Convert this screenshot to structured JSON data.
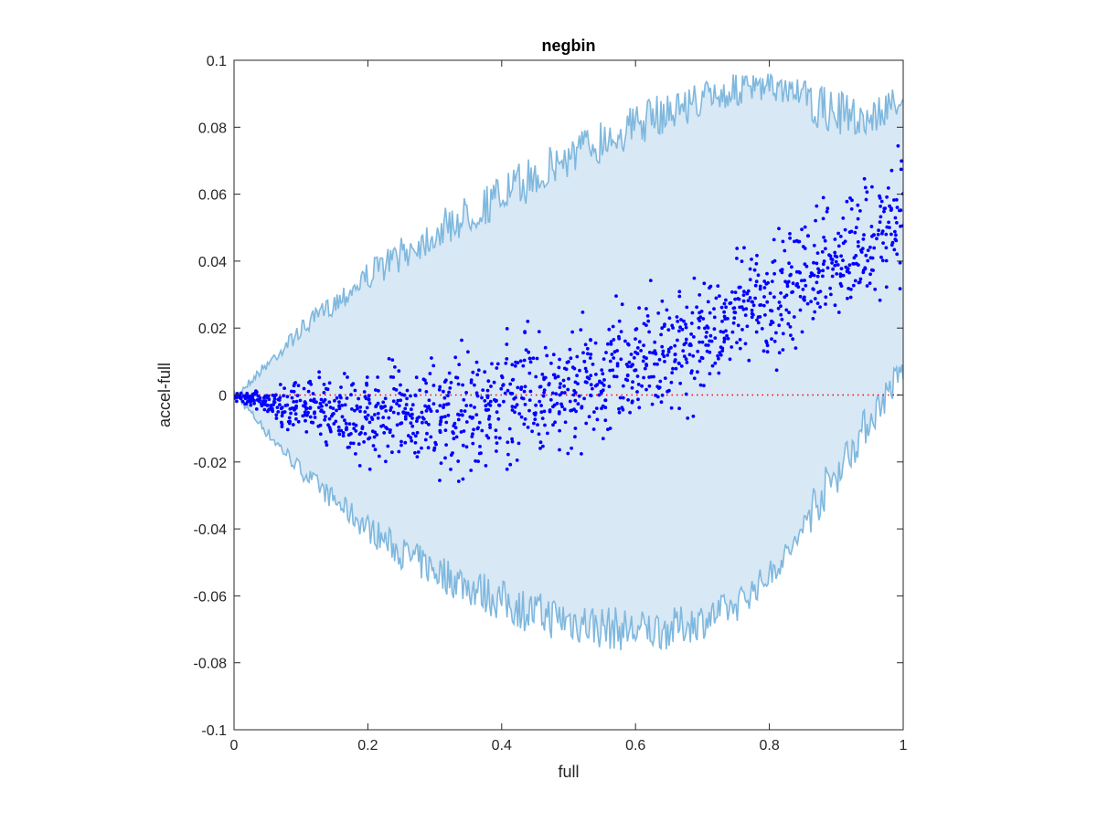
{
  "chart_data": {
    "type": "scatter",
    "title": "negbin",
    "xlabel": "full",
    "ylabel": "accel-full",
    "xlim": [
      0,
      1
    ],
    "ylim": [
      -0.1,
      0.1
    ],
    "x_ticks": [
      "0",
      "0.2",
      "0.4",
      "0.6",
      "0.8",
      "1"
    ],
    "x_tick_values": [
      0,
      0.2,
      0.4,
      0.6,
      0.8,
      1
    ],
    "y_ticks": [
      "0.1",
      "0.08",
      "0.06",
      "0.04",
      "0.02",
      "0",
      "-0.02",
      "-0.04",
      "-0.06",
      "-0.08",
      "-0.1"
    ],
    "y_tick_values": [
      0.1,
      0.08,
      0.06,
      0.04,
      0.02,
      0,
      -0.02,
      -0.04,
      -0.06,
      -0.08,
      -0.1
    ],
    "grid": false,
    "reference_line": {
      "y": 0,
      "color": "#ff0000",
      "style": "dotted"
    },
    "band": {
      "fill_color": "#d9e8f5",
      "edge_color": "#7fb8de",
      "x": [
        0,
        0.05,
        0.1,
        0.15,
        0.2,
        0.25,
        0.3,
        0.35,
        0.4,
        0.45,
        0.5,
        0.55,
        0.6,
        0.65,
        0.7,
        0.75,
        0.8,
        0.85,
        0.9,
        0.95,
        1.0
      ],
      "upper": [
        0,
        0.011,
        0.022,
        0.031,
        0.04,
        0.047,
        0.054,
        0.06,
        0.066,
        0.072,
        0.078,
        0.083,
        0.087,
        0.091,
        0.094,
        0.096,
        0.096,
        0.094,
        0.091,
        0.088,
        0.094
      ],
      "lower": [
        0,
        -0.013,
        -0.025,
        -0.035,
        -0.044,
        -0.052,
        -0.058,
        -0.063,
        -0.068,
        -0.072,
        -0.074,
        -0.076,
        -0.077,
        -0.076,
        -0.073,
        -0.068,
        -0.058,
        -0.045,
        -0.03,
        -0.013,
        0.003
      ]
    },
    "series": [
      {
        "color": "#0000ff",
        "x": [
          0.01,
          0.02,
          0.03,
          0.04,
          0.05,
          0.06,
          0.07,
          0.08,
          0.09,
          0.1,
          0.11,
          0.12,
          0.13,
          0.14,
          0.15,
          0.16,
          0.17,
          0.18,
          0.19,
          0.2,
          0.21,
          0.22,
          0.23,
          0.24,
          0.25,
          0.26,
          0.27,
          0.28,
          0.29,
          0.3,
          0.31,
          0.32,
          0.33,
          0.34,
          0.35,
          0.36,
          0.37,
          0.38,
          0.39,
          0.4,
          0.41,
          0.42,
          0.43,
          0.44,
          0.45,
          0.46,
          0.47,
          0.48,
          0.49,
          0.5,
          0.51,
          0.52,
          0.53,
          0.54,
          0.55,
          0.56,
          0.57,
          0.58,
          0.59,
          0.6,
          0.61,
          0.62,
          0.63,
          0.64,
          0.65,
          0.66,
          0.67,
          0.68,
          0.69,
          0.7,
          0.71,
          0.72,
          0.73,
          0.74,
          0.75,
          0.76,
          0.77,
          0.78,
          0.79,
          0.8,
          0.81,
          0.82,
          0.83,
          0.84,
          0.85,
          0.86,
          0.87,
          0.88,
          0.89,
          0.9,
          0.91,
          0.92,
          0.93,
          0.94,
          0.95,
          0.96,
          0.97,
          0.98,
          0.99,
          1.0
        ],
        "mean": [
          -0.0005,
          -0.001,
          -0.0013,
          -0.0018,
          -0.0022,
          -0.0026,
          -0.003,
          -0.0034,
          -0.0038,
          -0.0041,
          -0.0044,
          -0.0047,
          -0.0049,
          -0.0051,
          -0.0053,
          -0.0055,
          -0.0057,
          -0.0058,
          -0.0059,
          -0.006,
          -0.0061,
          -0.0061,
          -0.0062,
          -0.0062,
          -0.0062,
          -0.0061,
          -0.0061,
          -0.006,
          -0.0059,
          -0.0057,
          -0.0055,
          -0.0053,
          -0.0051,
          -0.0048,
          -0.0045,
          -0.0042,
          -0.0039,
          -0.0036,
          -0.0032,
          -0.0028,
          -0.0024,
          -0.002,
          -0.0016,
          -0.0012,
          -0.0008,
          -0.0004,
          0.0001,
          0.0006,
          0.0011,
          0.0016,
          0.0022,
          0.0028,
          0.0034,
          0.004,
          0.0047,
          0.0054,
          0.0061,
          0.0068,
          0.0076,
          0.0084,
          0.0092,
          0.01,
          0.0108,
          0.0116,
          0.0125,
          0.0134,
          0.0143,
          0.0152,
          0.0161,
          0.0171,
          0.018,
          0.019,
          0.02,
          0.021,
          0.022,
          0.0231,
          0.0242,
          0.0253,
          0.0264,
          0.0275,
          0.0286,
          0.0298,
          0.031,
          0.0322,
          0.0334,
          0.0346,
          0.0358,
          0.037,
          0.0382,
          0.0394,
          0.0406,
          0.0418,
          0.043,
          0.0442,
          0.0454,
          0.0466,
          0.0478,
          0.049,
          0.0502,
          0.0514
        ],
        "spread": [
          0.0008,
          0.0012,
          0.0015,
          0.002,
          0.0025,
          0.003,
          0.0034,
          0.0038,
          0.0042,
          0.0046,
          0.005,
          0.0054,
          0.0058,
          0.0061,
          0.0064,
          0.0067,
          0.007,
          0.0072,
          0.0074,
          0.0076,
          0.0078,
          0.008,
          0.0082,
          0.0084,
          0.0086,
          0.0088,
          0.009,
          0.0092,
          0.0094,
          0.0096,
          0.0098,
          0.01,
          0.0101,
          0.0102,
          0.0103,
          0.0104,
          0.0105,
          0.0106,
          0.0107,
          0.0108,
          0.0108,
          0.0108,
          0.0108,
          0.0108,
          0.0108,
          0.0108,
          0.0108,
          0.0108,
          0.0108,
          0.0108,
          0.0108,
          0.0108,
          0.0108,
          0.0108,
          0.0108,
          0.0108,
          0.0108,
          0.0108,
          0.0108,
          0.0108,
          0.0108,
          0.0108,
          0.0108,
          0.0108,
          0.0108,
          0.0108,
          0.0108,
          0.0108,
          0.0108,
          0.0108,
          0.0108,
          0.0108,
          0.0108,
          0.0108,
          0.0108,
          0.0108,
          0.0108,
          0.0108,
          0.0108,
          0.0108,
          0.0108,
          0.0108,
          0.0108,
          0.0108,
          0.0108,
          0.0108,
          0.0108,
          0.0108,
          0.0108,
          0.0108,
          0.0108,
          0.0108,
          0.0108,
          0.0108,
          0.0108,
          0.0108,
          0.0108,
          0.0108,
          0.0108,
          0.0108
        ]
      }
    ]
  }
}
